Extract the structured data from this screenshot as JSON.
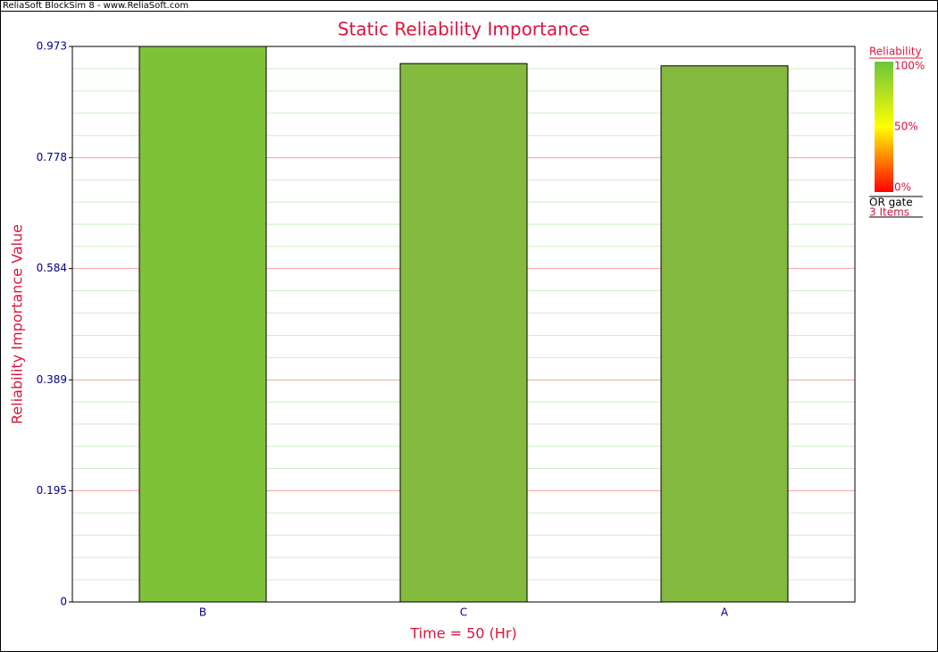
{
  "header": "ReliaSoft BlockSim 8 - www.ReliaSoft.com",
  "chart_data": {
    "type": "bar",
    "title": "Static Reliability Importance",
    "xlabel": "Time = 50 (Hr)",
    "ylabel": "Reliability Importance Value",
    "categories": [
      "B",
      "C",
      "A"
    ],
    "values": [
      0.973,
      0.943,
      0.939
    ],
    "colors": [
      "#7fc23a",
      "#84ba3e",
      "#84b93f"
    ],
    "ylim": [
      0,
      0.973
    ],
    "yticks": [
      0,
      0.195,
      0.389,
      0.584,
      0.778,
      0.973
    ],
    "grid": true,
    "minor_grid": true,
    "legend": {
      "title": "Reliability",
      "scale_labels": [
        "100%",
        "50%",
        "0%"
      ],
      "gate": "OR gate",
      "items": "3 Items"
    }
  }
}
